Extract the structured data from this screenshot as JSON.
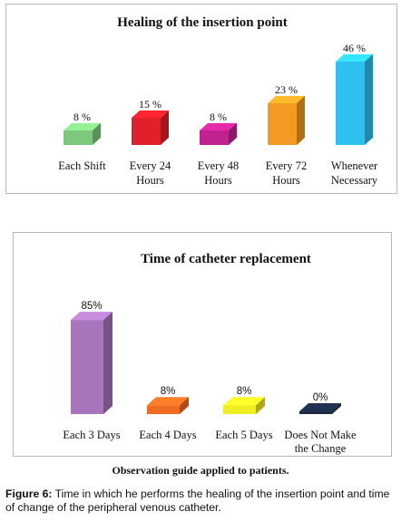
{
  "chart_data": [
    {
      "type": "bar",
      "title": "Healing of the insertion point",
      "categories": [
        "Each Shift",
        "Every 24 Hours",
        "Every 48 Hours",
        "Every 72 Hours",
        "Whenever Necessary"
      ],
      "category_lines": [
        [
          "Each Shift"
        ],
        [
          "Every 24",
          "Hours"
        ],
        [
          "Every 48",
          "Hours"
        ],
        [
          "Every 72",
          "Hours"
        ],
        [
          "Whenever",
          "Necessary"
        ]
      ],
      "values": [
        8,
        15,
        8,
        23,
        46
      ],
      "value_labels": [
        "8 %",
        "15 %",
        "8 %",
        "23 %",
        "46 %"
      ],
      "colors": [
        "#7dc87d",
        "#e0202a",
        "#c0238f",
        "#f39a22",
        "#2ec0ee"
      ],
      "ylim": [
        0,
        50
      ]
    },
    {
      "type": "bar",
      "title": "Time of catheter replacement",
      "categories": [
        "Each 3 Days",
        "Each 4 Days",
        "Each 5 Days",
        "Does Not Make the Change"
      ],
      "category_lines": [
        [
          "Each 3 Days"
        ],
        [
          "Each 4 Days"
        ],
        [
          "Each 5 Days"
        ],
        [
          "Does Not Make",
          "the Change"
        ]
      ],
      "values": [
        85,
        8,
        8,
        0
      ],
      "value_labels": [
        "85%",
        "8%",
        "8%",
        "0%"
      ],
      "colors": [
        "#a675ba",
        "#f06a22",
        "#f0ee22",
        "#1c2a44"
      ],
      "ylim": [
        0,
        90
      ]
    }
  ],
  "caption": "Observation guide applied to patients.",
  "figure": {
    "label": "Figure 6:",
    "text": "Time in which he performs the healing of the insertion point and time of change of the peripheral venous catheter."
  }
}
